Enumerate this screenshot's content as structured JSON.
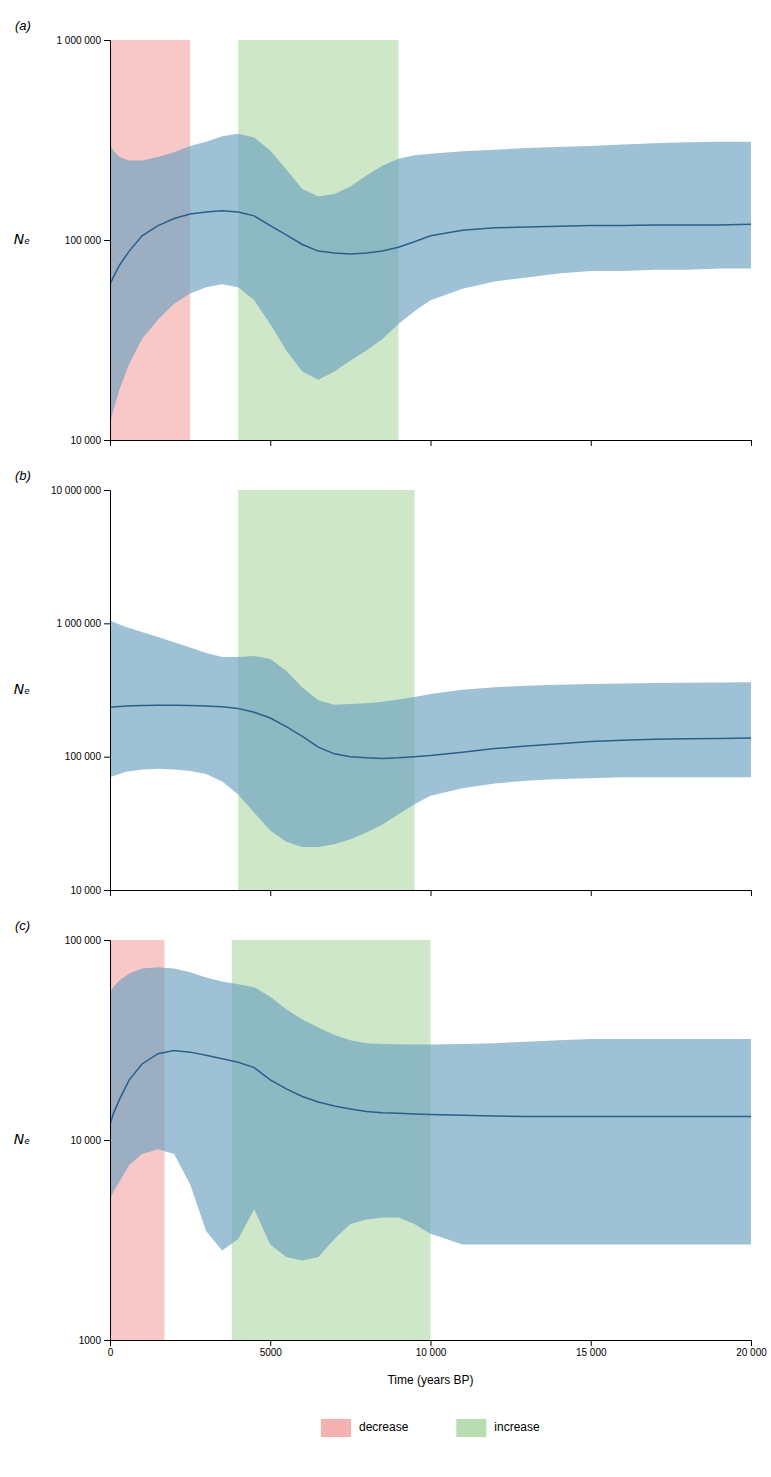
{
  "chart_data": [
    {
      "type": "line",
      "title": "(a)",
      "ylabel": "Nₑ",
      "log": "y",
      "tick_labels": "y",
      "xlim": [
        0,
        20000
      ],
      "xticks": [
        0,
        5000,
        10000,
        15000,
        20000
      ],
      "ylim": [
        10000,
        1000000
      ],
      "yticks": [
        {
          "value": 10000,
          "label": "10 000"
        },
        {
          "value": 100000,
          "label": "100 000"
        },
        {
          "value": 1000000,
          "label": "1 000 000"
        }
      ],
      "bands": [
        {
          "name": "decrease",
          "color": "#f5b0b0",
          "range": [
            0,
            2500
          ]
        },
        {
          "name": "increase",
          "color": "#b8ddb0",
          "range": [
            4000,
            9000
          ]
        }
      ],
      "x": [
        0,
        100,
        300,
        600,
        1000,
        1500,
        2000,
        2500,
        3000,
        3500,
        4000,
        4500,
        5000,
        5500,
        6000,
        6500,
        7000,
        7500,
        8000,
        8500,
        9000,
        9500,
        10000,
        11000,
        12000,
        13000,
        14000,
        15000,
        16000,
        17000,
        18000,
        19000,
        20000
      ],
      "series": [
        {
          "type": "area",
          "color": "#6a9fbe",
          "upper": [
            300000,
            280000,
            260000,
            250000,
            250000,
            260000,
            275000,
            295000,
            310000,
            330000,
            340000,
            325000,
            280000,
            225000,
            180000,
            165000,
            170000,
            185000,
            210000,
            235000,
            255000,
            265000,
            270000,
            278000,
            283000,
            288000,
            292000,
            295000,
            300000,
            305000,
            308000,
            310000,
            310000
          ],
          "lower": [
            12000,
            14000,
            18000,
            24000,
            32000,
            40000,
            48000,
            54000,
            58000,
            60000,
            58000,
            50000,
            38000,
            28000,
            22000,
            20000,
            22000,
            25000,
            28000,
            32000,
            38000,
            44000,
            50000,
            57000,
            62000,
            65000,
            68000,
            70000,
            70000,
            71000,
            71000,
            72000,
            72000
          ]
        },
        {
          "type": "line",
          "color": "#2b5f8c",
          "values": [
            60000,
            65000,
            75000,
            88000,
            105000,
            118000,
            128000,
            135000,
            138000,
            140000,
            138000,
            132000,
            118000,
            106000,
            95000,
            88000,
            86000,
            85000,
            86000,
            88000,
            92000,
            98000,
            105000,
            112000,
            115000,
            116000,
            117000,
            118000,
            118000,
            119000,
            119000,
            119000,
            120000
          ]
        }
      ]
    },
    {
      "type": "line",
      "title": "(b)",
      "ylabel": "Nₑ",
      "log": "y",
      "tick_labels": "y",
      "xlim": [
        0,
        20000
      ],
      "xticks": [
        0,
        5000,
        10000,
        15000,
        20000
      ],
      "ylim": [
        10000,
        10000000
      ],
      "yticks": [
        {
          "value": 10000,
          "label": "10 000"
        },
        {
          "value": 100000,
          "label": "100 000"
        },
        {
          "value": 1000000,
          "label": "1 000 000"
        },
        {
          "value": 10000000,
          "label": "10 000 000"
        }
      ],
      "bands": [
        {
          "name": "increase",
          "color": "#b8ddb0",
          "range": [
            4000,
            9500
          ]
        }
      ],
      "x": [
        0,
        200,
        500,
        1000,
        1500,
        2000,
        2500,
        3000,
        3500,
        4000,
        4500,
        5000,
        5500,
        6000,
        6500,
        7000,
        7500,
        8000,
        8500,
        9000,
        9500,
        10000,
        11000,
        12000,
        13000,
        14000,
        15000,
        16000,
        17000,
        18000,
        19000,
        20000
      ],
      "series": [
        {
          "type": "area",
          "color": "#6a9fbe",
          "upper": [
            1050000,
            1000000,
            940000,
            860000,
            790000,
            720000,
            660000,
            600000,
            560000,
            560000,
            570000,
            540000,
            440000,
            330000,
            265000,
            245000,
            248000,
            252000,
            258000,
            268000,
            280000,
            295000,
            318000,
            332000,
            340000,
            346000,
            350000,
            354000,
            357000,
            359000,
            360000,
            361000
          ],
          "lower": [
            70000,
            73000,
            77000,
            80000,
            81000,
            80000,
            78000,
            74000,
            65000,
            52000,
            38000,
            28000,
            23000,
            21000,
            21000,
            22000,
            24000,
            27000,
            31000,
            37000,
            44000,
            51000,
            58000,
            63000,
            66000,
            68000,
            69000,
            70000,
            70000,
            70000,
            70000,
            70000
          ]
        },
        {
          "type": "line",
          "color": "#2b5f8c",
          "values": [
            235000,
            237000,
            240000,
            242000,
            243000,
            243000,
            242000,
            240000,
            237000,
            230000,
            215000,
            195000,
            168000,
            142000,
            118000,
            105000,
            100000,
            98000,
            97000,
            98000,
            100000,
            102000,
            108000,
            115000,
            120000,
            125000,
            130000,
            133000,
            135000,
            136000,
            137000,
            138000
          ]
        }
      ]
    },
    {
      "type": "line",
      "title": "(c)",
      "ylabel": "Nₑ",
      "xlabel": "Time (years BP)",
      "log": "y",
      "legend": "bottom",
      "xlim": [
        0,
        20000
      ],
      "xticks": [
        0,
        5000,
        {
          "value": 10000,
          "label": "10 000"
        },
        {
          "value": 15000,
          "label": "15 000"
        },
        {
          "value": 20000,
          "label": "20 000"
        }
      ],
      "ylim": [
        1000,
        100000
      ],
      "yticks": [
        1000,
        {
          "value": 10000,
          "label": "10 000"
        },
        {
          "value": 100000,
          "label": "100 000"
        }
      ],
      "bands": [
        {
          "name": "decrease",
          "color": "#f5b0b0",
          "range": [
            0,
            1700
          ]
        },
        {
          "name": "increase",
          "color": "#b8ddb0",
          "range": [
            3800,
            10000
          ]
        }
      ],
      "x": [
        0,
        100,
        300,
        600,
        1000,
        1500,
        2000,
        2500,
        3000,
        3500,
        4000,
        4500,
        5000,
        5500,
        6000,
        6500,
        7000,
        7500,
        8000,
        8500,
        9000,
        9500,
        10000,
        11000,
        12000,
        13000,
        14000,
        15000,
        16000,
        17000,
        18000,
        19000,
        20000
      ],
      "series": [
        {
          "type": "area",
          "color": "#6a9fbe",
          "upper": [
            55000,
            58000,
            63000,
            68000,
            72000,
            73000,
            72000,
            69000,
            65000,
            62000,
            60000,
            58000,
            52000,
            45000,
            40000,
            36500,
            33500,
            31500,
            30500,
            30200,
            30100,
            30000,
            30000,
            30200,
            30500,
            31000,
            31500,
            32000,
            32000,
            32000,
            32000,
            32000,
            32000
          ],
          "lower": [
            5000,
            5500,
            6200,
            7500,
            8500,
            9000,
            8500,
            6000,
            3500,
            2800,
            3200,
            4500,
            3000,
            2600,
            2500,
            2600,
            3200,
            3800,
            4000,
            4100,
            4100,
            3800,
            3400,
            3000,
            3000,
            3000,
            3000,
            3000,
            3000,
            3000,
            3000,
            3000,
            3000
          ]
        },
        {
          "type": "line",
          "color": "#2b5f8c",
          "values": [
            12000,
            13500,
            16000,
            20000,
            24000,
            27000,
            28000,
            27500,
            26500,
            25500,
            24500,
            23000,
            20000,
            18000,
            16500,
            15500,
            14800,
            14300,
            13900,
            13700,
            13600,
            13500,
            13400,
            13300,
            13200,
            13100,
            13100,
            13100,
            13100,
            13100,
            13100,
            13100,
            13100
          ]
        }
      ]
    }
  ]
}
